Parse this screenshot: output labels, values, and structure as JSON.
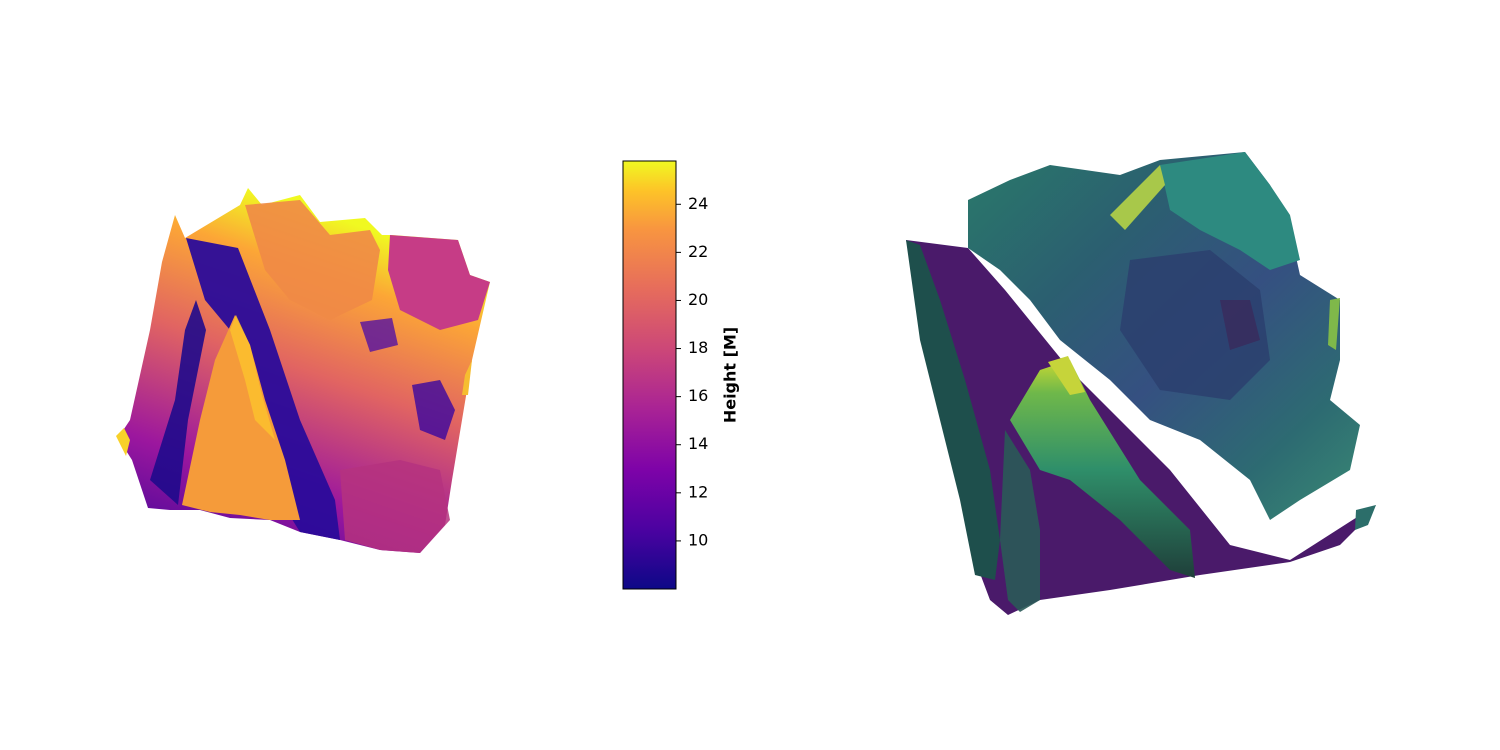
{
  "chart_data": [
    {
      "type": "surface3d",
      "colormap": "plasma",
      "background": "#ffffff",
      "axes_visible": false,
      "value_range": [
        8,
        25.8
      ],
      "colorbar": {
        "label": "Height [M]",
        "ticks": [
          10,
          12,
          14,
          16,
          18,
          20,
          22,
          24
        ],
        "tick_labels": [
          "10",
          "12",
          "14",
          "16",
          "18",
          "20",
          "22",
          "24"
        ],
        "range": [
          8,
          25.8
        ],
        "colormap": "plasma"
      }
    },
    {
      "type": "surface3d",
      "colormap": "viridis-shaded",
      "background": "#ffffff",
      "axes_visible": false,
      "value_range": [
        8,
        25.8
      ]
    }
  ]
}
